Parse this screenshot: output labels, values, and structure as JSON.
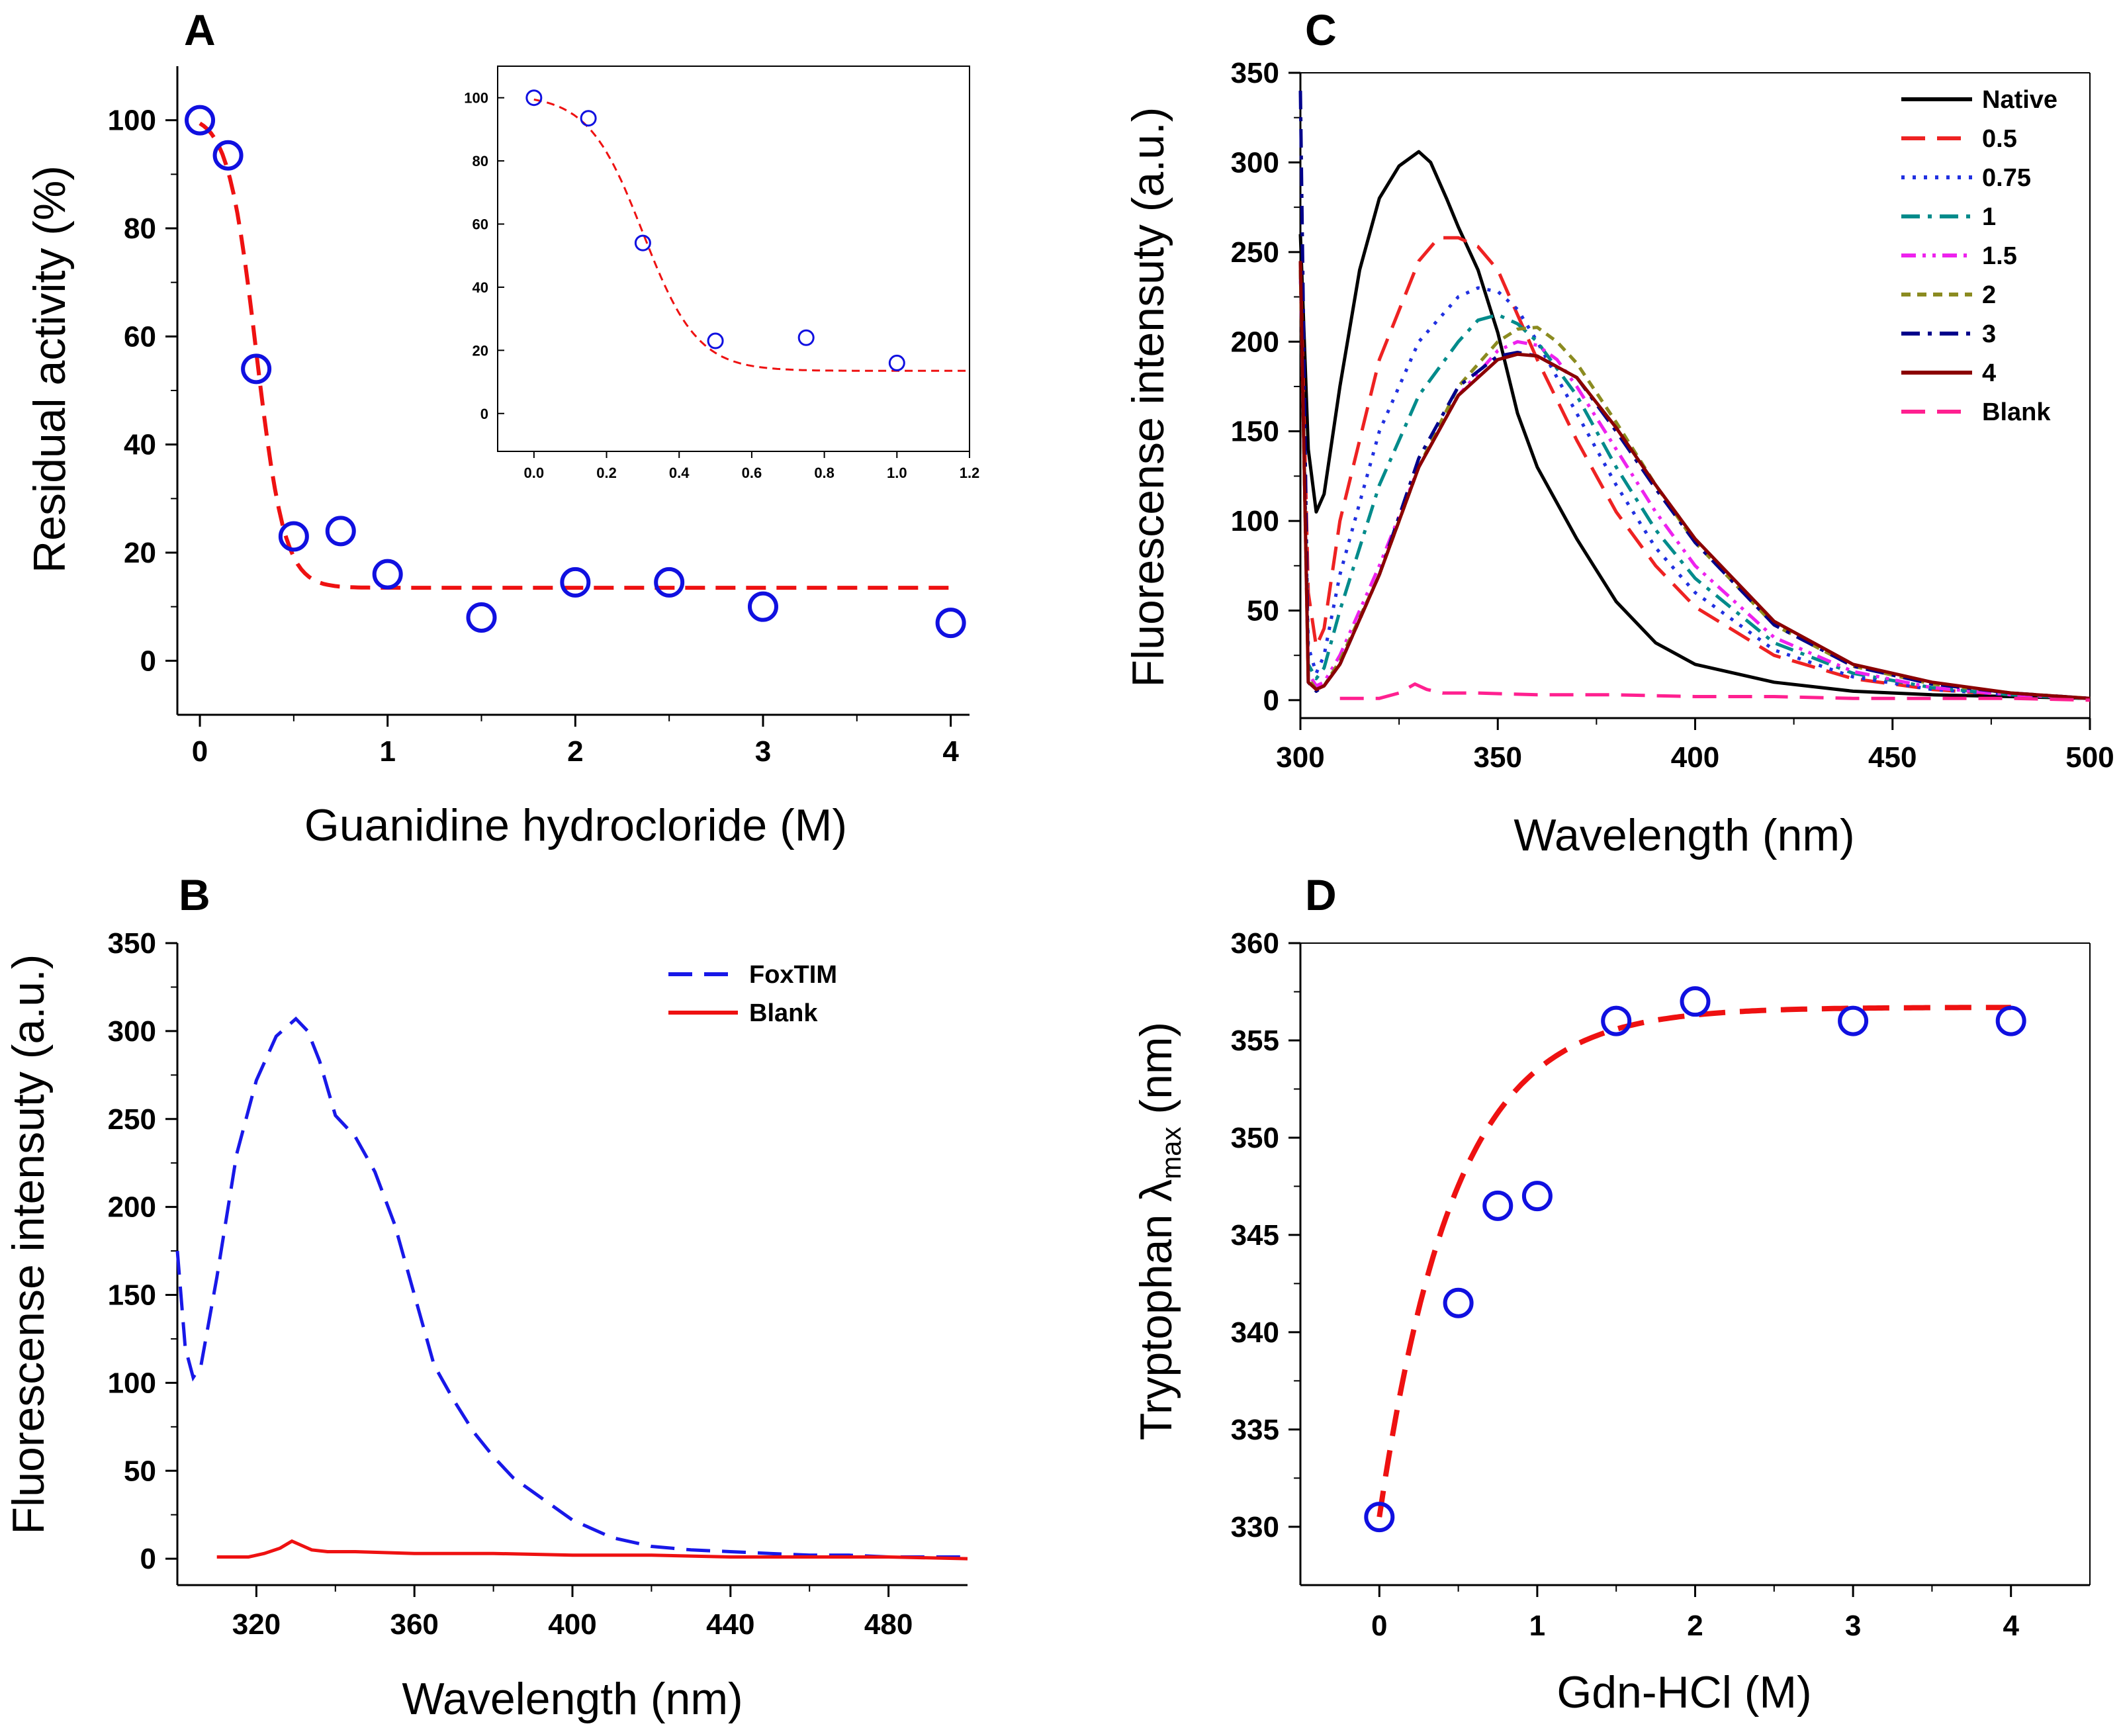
{
  "colors": {
    "axis": "#000000",
    "marker": "#1010e0",
    "fit": "#ee1111",
    "native": "#000000",
    "c05": "#ee2222",
    "c075": "#2030e0",
    "c1": "#008b8b",
    "c15": "#ee22ee",
    "c2": "#8b8b20",
    "c3": "#00008b",
    "c4": "#8b0000",
    "blankC": "#ff2090",
    "foxtim": "#1818e8",
    "blankB": "#ee1111"
  },
  "chart_data": [
    {
      "id": "A",
      "panel_label": "A",
      "type": "scatter",
      "xlabel": "Guanidine hydrocloride (M)",
      "ylabel": "Residual activity (%)",
      "xlim": [
        -0.12,
        4.1
      ],
      "ylim": [
        -10,
        110
      ],
      "xticks": [
        "0",
        "1",
        "2",
        "3",
        "4"
      ],
      "yticks": [
        "0",
        "20",
        "40",
        "60",
        "80",
        "100"
      ],
      "series": [
        {
          "name": "data",
          "x": [
            0,
            0.15,
            0.3,
            0.5,
            0.75,
            1.0,
            1.5,
            2.0,
            2.5,
            3.0,
            4.0
          ],
          "y": [
            100,
            93.5,
            54,
            23,
            24,
            16,
            8,
            14.5,
            14.5,
            10,
            7
          ]
        },
        {
          "name": "fit",
          "style": "dashed",
          "model": "sigmoid",
          "top": 101,
          "bottom": 13.5,
          "x0": 0.3,
          "slope": 0.075
        }
      ],
      "inset": {
        "xlim": [
          -0.1,
          1.2
        ],
        "ylim": [
          -12,
          110
        ],
        "xticks": [
          "0.0",
          "0.2",
          "0.4",
          "0.6",
          "0.8",
          "1.0",
          "1.2"
        ],
        "yticks": [
          "0",
          "20",
          "40",
          "60",
          "80",
          "100"
        ],
        "x": [
          0,
          0.15,
          0.3,
          0.5,
          0.75,
          1.0
        ],
        "y": [
          100,
          93.5,
          54,
          23,
          24,
          16
        ]
      }
    },
    {
      "id": "B",
      "panel_label": "B",
      "type": "line",
      "xlabel": "Wavelength (nm)",
      "ylabel": "Fluorescense intensuty (a.u.)",
      "xlim": [
        300,
        500
      ],
      "ylim": [
        -15,
        350
      ],
      "xticks": [
        "320",
        "360",
        "400",
        "440",
        "480"
      ],
      "yticks": [
        "0",
        "50",
        "100",
        "150",
        "200",
        "250",
        "300",
        "350"
      ],
      "legend": [
        "FoxTIM",
        "Blank"
      ],
      "series": [
        {
          "name": "FoxTIM",
          "style": "dashed",
          "x": [
            300,
            302,
            304,
            306,
            310,
            315,
            320,
            325,
            330,
            333,
            336,
            340,
            345,
            350,
            355,
            360,
            365,
            370,
            375,
            380,
            385,
            390,
            395,
            400,
            410,
            420,
            430,
            440,
            450,
            460,
            470,
            480,
            490,
            500
          ],
          "y": [
            175,
            120,
            103,
            110,
            160,
            230,
            272,
            297,
            307,
            300,
            283,
            252,
            240,
            220,
            190,
            150,
            110,
            90,
            72,
            58,
            46,
            38,
            30,
            22,
            12,
            7,
            5,
            4,
            3,
            2,
            2,
            1,
            1,
            1
          ]
        },
        {
          "name": "Blank",
          "style": "solid",
          "x": [
            310,
            318,
            322,
            326,
            329,
            331,
            334,
            338,
            345,
            360,
            380,
            400,
            420,
            440,
            460,
            480,
            500
          ],
          "y": [
            1,
            1,
            3,
            6,
            10,
            8,
            5,
            4,
            4,
            3,
            3,
            2,
            2,
            1,
            1,
            1,
            0
          ]
        }
      ]
    },
    {
      "id": "C",
      "panel_label": "C",
      "type": "line",
      "xlabel": "Wavelength (nm)",
      "ylabel": "Fluorescense intensuty (a.u.)",
      "xlim": [
        300,
        500
      ],
      "ylim": [
        -10,
        350
      ],
      "xticks": [
        "300",
        "350",
        "400",
        "450",
        "500"
      ],
      "yticks": [
        "0",
        "50",
        "100",
        "150",
        "200",
        "250",
        "300",
        "350"
      ],
      "legend": [
        "Native",
        "0.5",
        "0.75",
        "1",
        "1.5",
        "2",
        "3",
        "4",
        "Blank"
      ],
      "series": [
        {
          "name": "Native",
          "style": "solid",
          "x": [
            300,
            302,
            304,
            306,
            310,
            315,
            320,
            325,
            330,
            333,
            337,
            340,
            345,
            350,
            355,
            360,
            370,
            380,
            390,
            400,
            420,
            440,
            460,
            480,
            500
          ],
          "y": [
            260,
            140,
            105,
            115,
            175,
            240,
            280,
            298,
            306,
            300,
            280,
            264,
            240,
            205,
            160,
            130,
            90,
            55,
            32,
            20,
            10,
            5,
            3,
            2,
            1
          ]
        },
        {
          "name": "0.5",
          "style": "dashed",
          "x": [
            300,
            302,
            304,
            306,
            310,
            320,
            330,
            335,
            340,
            345,
            350,
            355,
            360,
            370,
            380,
            390,
            400,
            420,
            440,
            460,
            480,
            500
          ],
          "y": [
            245,
            60,
            30,
            40,
            100,
            190,
            245,
            258,
            258,
            253,
            240,
            215,
            190,
            145,
            105,
            75,
            52,
            25,
            12,
            6,
            3,
            1
          ]
        },
        {
          "name": "0.75",
          "style": "dotted",
          "x": [
            300,
            302,
            304,
            306,
            310,
            320,
            330,
            340,
            345,
            350,
            355,
            360,
            370,
            380,
            390,
            400,
            420,
            440,
            460,
            480,
            500
          ],
          "y": [
            240,
            30,
            15,
            25,
            70,
            150,
            200,
            225,
            230,
            228,
            218,
            200,
            160,
            120,
            85,
            60,
            28,
            13,
            6,
            3,
            1
          ]
        },
        {
          "name": "1",
          "style": "dashdot",
          "x": [
            300,
            302,
            304,
            306,
            310,
            320,
            330,
            340,
            345,
            350,
            355,
            360,
            370,
            380,
            390,
            400,
            420,
            440,
            460,
            480,
            500
          ],
          "y": [
            240,
            20,
            12,
            18,
            50,
            120,
            170,
            200,
            212,
            215,
            210,
            200,
            170,
            130,
            95,
            68,
            32,
            15,
            7,
            3,
            1
          ]
        },
        {
          "name": "1.5",
          "style": "dashdotdot",
          "x": [
            300,
            302,
            304,
            306,
            310,
            320,
            330,
            340,
            350,
            355,
            360,
            365,
            370,
            380,
            390,
            400,
            420,
            440,
            460,
            480,
            500
          ],
          "y": [
            240,
            15,
            8,
            10,
            25,
            75,
            130,
            170,
            195,
            200,
            198,
            190,
            175,
            140,
            105,
            75,
            35,
            16,
            7,
            3,
            1
          ]
        },
        {
          "name": "2",
          "style": "shortdash",
          "x": [
            300,
            302,
            304,
            306,
            310,
            320,
            330,
            340,
            350,
            355,
            360,
            365,
            370,
            380,
            390,
            400,
            420,
            440,
            460,
            480,
            500
          ],
          "y": [
            240,
            12,
            6,
            8,
            22,
            70,
            130,
            175,
            200,
            207,
            208,
            200,
            188,
            155,
            120,
            88,
            42,
            19,
            9,
            4,
            1
          ]
        },
        {
          "name": "3",
          "style": "dashdot",
          "x": [
            300,
            302,
            304,
            306,
            310,
            320,
            330,
            340,
            350,
            355,
            360,
            370,
            380,
            390,
            400,
            420,
            440,
            460,
            480,
            500
          ],
          "y": [
            340,
            10,
            5,
            8,
            20,
            70,
            135,
            175,
            192,
            194,
            192,
            180,
            150,
            118,
            88,
            42,
            19,
            9,
            4,
            1
          ]
        },
        {
          "name": "4",
          "style": "solid",
          "x": [
            300,
            302,
            304,
            306,
            310,
            320,
            330,
            340,
            350,
            355,
            360,
            370,
            380,
            390,
            400,
            420,
            440,
            460,
            480,
            500
          ],
          "y": [
            245,
            10,
            6,
            8,
            20,
            70,
            130,
            170,
            190,
            193,
            192,
            180,
            152,
            120,
            90,
            44,
            20,
            10,
            4,
            1
          ]
        },
        {
          "name": "Blank",
          "style": "dashed",
          "x": [
            310,
            320,
            325,
            329,
            332,
            336,
            345,
            360,
            380,
            400,
            420,
            440,
            460,
            480,
            500
          ],
          "y": [
            1,
            1,
            4,
            9,
            6,
            4,
            4,
            3,
            3,
            2,
            2,
            1,
            1,
            1,
            0
          ]
        }
      ]
    },
    {
      "id": "D",
      "panel_label": "D",
      "type": "scatter",
      "xlabel": "Gdn-HCl (M)",
      "ylabel_prefix": "Tryptophan ",
      "ylabel_symbol": "λ",
      "ylabel_sub": "max",
      "ylabel_suffix": " (nm)",
      "xlim": [
        -0.5,
        4.5
      ],
      "ylim": [
        327,
        360
      ],
      "xticks": [
        "0",
        "1",
        "2",
        "3",
        "4"
      ],
      "yticks": [
        "330",
        "335",
        "340",
        "345",
        "350",
        "355",
        "360"
      ],
      "series": [
        {
          "name": "data",
          "x": [
            0,
            0.5,
            0.75,
            1.0,
            1.5,
            2.0,
            3.0,
            4.0
          ],
          "y": [
            330.5,
            341.5,
            346.5,
            347,
            356,
            357,
            356,
            356
          ]
        },
        {
          "name": "fit",
          "style": "dashed",
          "model": "exp",
          "top": 356.7,
          "bottom": 330.5,
          "k": 2.1
        }
      ]
    }
  ]
}
